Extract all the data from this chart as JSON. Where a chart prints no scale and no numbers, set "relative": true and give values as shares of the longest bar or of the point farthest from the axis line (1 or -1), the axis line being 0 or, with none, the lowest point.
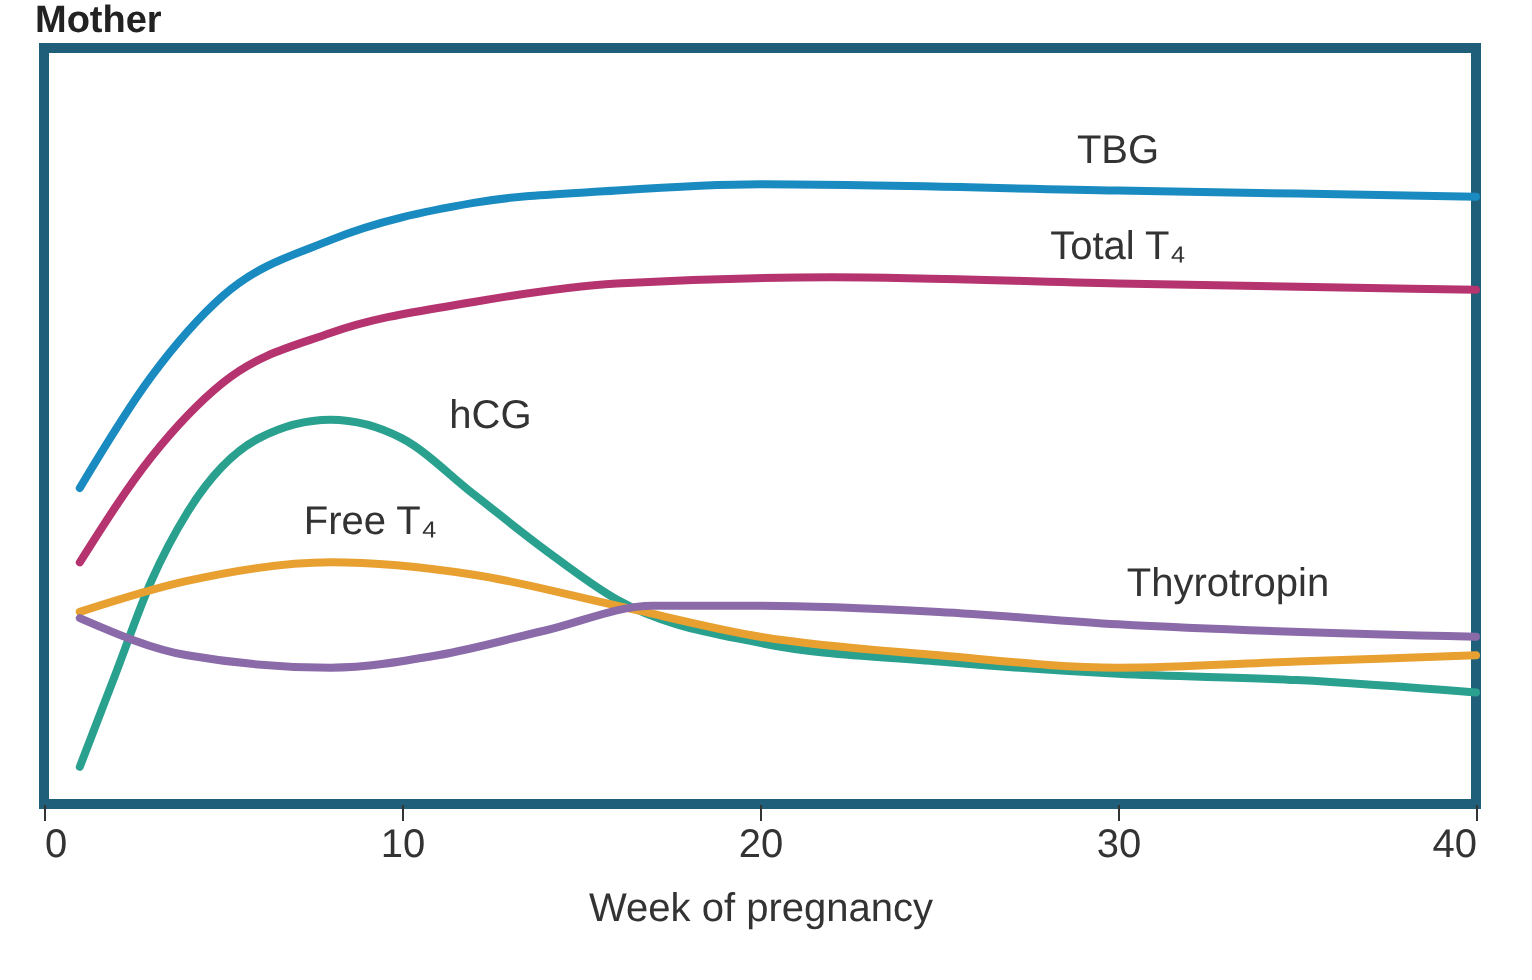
{
  "chart_data": {
    "type": "line",
    "title": "Mother",
    "xlabel": "Week of pregnancy",
    "relative": true,
    "xlim": [
      0,
      40
    ],
    "xticks": [
      0,
      10,
      20,
      30,
      40
    ],
    "grid": false,
    "marker": "none",
    "line_style": "solid",
    "series": [
      {
        "name": "TBG",
        "color": "#1a8bc0",
        "x": [
          1,
          3,
          5,
          8,
          12,
          16,
          20,
          30,
          40
        ],
        "values": [
          0.51,
          0.69,
          0.82,
          0.91,
          0.97,
          0.99,
          1.0,
          0.99,
          0.98
        ]
      },
      {
        "name": "Total T₄",
        "color": "#b5336e",
        "x": [
          1,
          3,
          5,
          8,
          12,
          16,
          22,
          30,
          40
        ],
        "values": [
          0.39,
          0.56,
          0.68,
          0.76,
          0.81,
          0.84,
          0.85,
          0.84,
          0.83
        ]
      },
      {
        "name": "hCG",
        "color": "#2aa08f",
        "x": [
          1,
          2,
          3,
          4,
          6,
          8,
          10,
          12,
          14,
          16,
          20,
          25,
          30,
          35,
          40
        ],
        "values": [
          0.06,
          0.21,
          0.36,
          0.47,
          0.59,
          0.62,
          0.59,
          0.5,
          0.41,
          0.33,
          0.26,
          0.23,
          0.21,
          0.2,
          0.18
        ]
      },
      {
        "name": "Free T₄",
        "color": "#e8a030",
        "x": [
          1,
          4,
          8,
          12,
          16,
          20,
          25,
          30,
          35,
          40
        ],
        "values": [
          0.31,
          0.36,
          0.39,
          0.37,
          0.32,
          0.27,
          0.24,
          0.22,
          0.23,
          0.24
        ]
      },
      {
        "name": "Thyrotropin",
        "color": "#8a6aa8",
        "x": [
          1,
          4,
          8,
          11,
          14,
          17,
          20,
          25,
          30,
          40
        ],
        "values": [
          0.3,
          0.24,
          0.22,
          0.24,
          0.28,
          0.32,
          0.32,
          0.31,
          0.29,
          0.27
        ]
      }
    ]
  }
}
